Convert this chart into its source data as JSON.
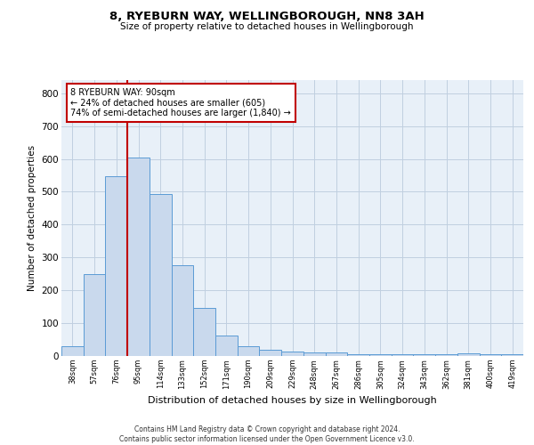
{
  "title": "8, RYEBURN WAY, WELLINGBOROUGH, NN8 3AH",
  "subtitle": "Size of property relative to detached houses in Wellingborough",
  "xlabel": "Distribution of detached houses by size in Wellingborough",
  "ylabel": "Number of detached properties",
  "categories": [
    "38sqm",
    "57sqm",
    "76sqm",
    "95sqm",
    "114sqm",
    "133sqm",
    "152sqm",
    "171sqm",
    "190sqm",
    "209sqm",
    "229sqm",
    "248sqm",
    "267sqm",
    "286sqm",
    "305sqm",
    "324sqm",
    "343sqm",
    "362sqm",
    "381sqm",
    "400sqm",
    "419sqm"
  ],
  "values": [
    30,
    248,
    548,
    603,
    493,
    277,
    147,
    62,
    30,
    18,
    14,
    12,
    12,
    5,
    5,
    5,
    5,
    5,
    8,
    5,
    5
  ],
  "bar_color": "#c9d9ed",
  "bar_edge_color": "#5b9bd5",
  "annotation_text_line1": "8 RYEBURN WAY: 90sqm",
  "annotation_text_line2": "← 24% of detached houses are smaller (605)",
  "annotation_text_line3": "74% of semi-detached houses are larger (1,840) →",
  "vline_color": "#c00000",
  "annotation_box_edge_color": "#c00000",
  "grid_color": "#c0cfe0",
  "background_color": "#e8f0f8",
  "footer_line1": "Contains HM Land Registry data © Crown copyright and database right 2024.",
  "footer_line2": "Contains public sector information licensed under the Open Government Licence v3.0.",
  "ylim": [
    0,
    840
  ],
  "yticks": [
    0,
    100,
    200,
    300,
    400,
    500,
    600,
    700,
    800
  ],
  "vline_x": 2.5,
  "figsize": [
    6.0,
    5.0
  ],
  "dpi": 100
}
